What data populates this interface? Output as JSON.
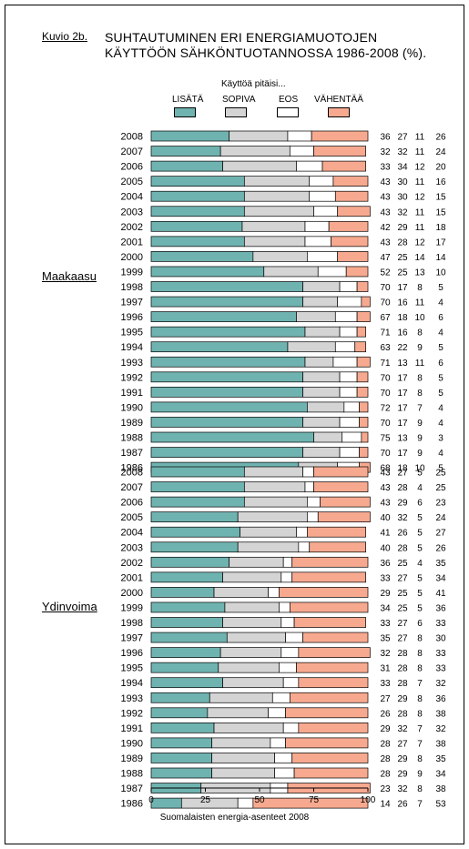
{
  "header": {
    "figure_label": "Kuvio 2b.",
    "title": "SUHTAUTUMINEN ERI ENERGIAMUOTOJEN KÄYTTÖÖN SÄHKÖNTUOTANNOSSA 1986-2008 (%)."
  },
  "legend": {
    "title": "Käyttöä pitäisi...",
    "items": [
      {
        "label": "LISÄTÄ",
        "color": "#6fb3b0"
      },
      {
        "label": "SOPIVA",
        "color": "#d4d4d4"
      },
      {
        "label": "EOS",
        "color": "#ffffff"
      },
      {
        "label": "VÄHENTÄÄ",
        "color": "#f7a98f"
      }
    ]
  },
  "footer": {
    "source": "Suomalaisten energia-asenteet 2008"
  },
  "chart_data": {
    "type": "bar",
    "orientation": "horizontal",
    "stacked": true,
    "xlim": [
      0,
      100
    ],
    "x_ticks": [
      0,
      25,
      50,
      75,
      100
    ],
    "series_names": [
      "LISÄTÄ",
      "SOPIVA",
      "EOS",
      "VÄHENTÄÄ"
    ],
    "colors": [
      "#6fb3b0",
      "#d4d4d4",
      "#ffffff",
      "#f7a98f"
    ],
    "groups": [
      {
        "name": "Maakaasu",
        "rows": [
          {
            "year": "2008",
            "values": [
              36,
              27,
              11,
              26
            ]
          },
          {
            "year": "2007",
            "values": [
              32,
              32,
              11,
              24
            ]
          },
          {
            "year": "2006",
            "values": [
              33,
              34,
              12,
              20
            ]
          },
          {
            "year": "2005",
            "values": [
              43,
              30,
              11,
              16
            ]
          },
          {
            "year": "2004",
            "values": [
              43,
              30,
              12,
              15
            ]
          },
          {
            "year": "2003",
            "values": [
              43,
              32,
              11,
              15
            ]
          },
          {
            "year": "2002",
            "values": [
              42,
              29,
              11,
              18
            ]
          },
          {
            "year": "2001",
            "values": [
              43,
              28,
              12,
              17
            ]
          },
          {
            "year": "2000",
            "values": [
              47,
              25,
              14,
              14
            ]
          },
          {
            "year": "1999",
            "values": [
              52,
              25,
              13,
              10
            ]
          },
          {
            "year": "1998",
            "values": [
              70,
              17,
              8,
              5
            ]
          },
          {
            "year": "1997",
            "values": [
              70,
              16,
              11,
              4
            ]
          },
          {
            "year": "1996",
            "values": [
              67,
              18,
              10,
              6
            ]
          },
          {
            "year": "1995",
            "values": [
              71,
              16,
              8,
              4
            ]
          },
          {
            "year": "1994",
            "values": [
              63,
              22,
              9,
              5
            ]
          },
          {
            "year": "1993",
            "values": [
              71,
              13,
              11,
              6
            ]
          },
          {
            "year": "1992",
            "values": [
              70,
              17,
              8,
              5
            ]
          },
          {
            "year": "1991",
            "values": [
              70,
              17,
              8,
              5
            ]
          },
          {
            "year": "1990",
            "values": [
              72,
              17,
              7,
              4
            ]
          },
          {
            "year": "1989",
            "values": [
              70,
              17,
              9,
              4
            ]
          },
          {
            "year": "1988",
            "values": [
              75,
              13,
              9,
              3
            ]
          },
          {
            "year": "1987",
            "values": [
              70,
              17,
              9,
              4
            ]
          },
          {
            "year": "1986",
            "values": [
              68,
              18,
              10,
              5
            ]
          }
        ]
      },
      {
        "name": "Ydinvoima",
        "rows": [
          {
            "year": "2008",
            "values": [
              43,
              27,
              5,
              25
            ]
          },
          {
            "year": "2007",
            "values": [
              43,
              28,
              4,
              25
            ]
          },
          {
            "year": "2006",
            "values": [
              43,
              29,
              6,
              23
            ]
          },
          {
            "year": "2005",
            "values": [
              40,
              32,
              5,
              24
            ]
          },
          {
            "year": "2004",
            "values": [
              41,
              26,
              5,
              27
            ]
          },
          {
            "year": "2003",
            "values": [
              40,
              28,
              5,
              26
            ]
          },
          {
            "year": "2002",
            "values": [
              36,
              25,
              4,
              35
            ]
          },
          {
            "year": "2001",
            "values": [
              33,
              27,
              5,
              34
            ]
          },
          {
            "year": "2000",
            "values": [
              29,
              25,
              5,
              41
            ]
          },
          {
            "year": "1999",
            "values": [
              34,
              25,
              5,
              36
            ]
          },
          {
            "year": "1998",
            "values": [
              33,
              27,
              6,
              33
            ]
          },
          {
            "year": "1997",
            "values": [
              35,
              27,
              8,
              30
            ]
          },
          {
            "year": "1996",
            "values": [
              32,
              28,
              8,
              33
            ]
          },
          {
            "year": "1995",
            "values": [
              31,
              28,
              8,
              33
            ]
          },
          {
            "year": "1994",
            "values": [
              33,
              28,
              7,
              32
            ]
          },
          {
            "year": "1993",
            "values": [
              27,
              29,
              8,
              36
            ]
          },
          {
            "year": "1992",
            "values": [
              26,
              28,
              8,
              38
            ]
          },
          {
            "year": "1991",
            "values": [
              29,
              32,
              7,
              32
            ]
          },
          {
            "year": "1990",
            "values": [
              28,
              27,
              7,
              38
            ]
          },
          {
            "year": "1989",
            "values": [
              28,
              29,
              8,
              35
            ]
          },
          {
            "year": "1988",
            "values": [
              28,
              29,
              9,
              34
            ]
          },
          {
            "year": "1987",
            "values": [
              23,
              32,
              8,
              38
            ]
          },
          {
            "year": "1986",
            "values": [
              14,
              26,
              7,
              53
            ]
          }
        ]
      }
    ]
  }
}
